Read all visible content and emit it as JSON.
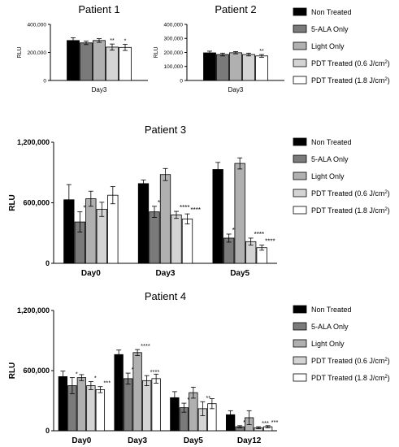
{
  "colors": {
    "Non Treated": "#000000",
    "5-ALA Only": "#7a7a7a",
    "Light Only": "#b0b0b0",
    "PDT Treated (0.6 J/cm2)": "#d4d4d4",
    "PDT Treated (1.8 J/cm2)": "#ffffff"
  },
  "legend_entries": [
    "Non Treated",
    "5-ALA Only",
    "Light Only",
    "PDT Treated (0.6 J/cm",
    "PDT Treated (1.8 J/cm"
  ],
  "legend_unit_sup": "2",
  "legend_unit_close": ")",
  "chart_data": [
    {
      "type": "bar",
      "title": "Patient 1",
      "ylabel": "RLU",
      "ylim": [
        0,
        400000
      ],
      "yticks": [
        "0",
        "200,000",
        "400,000"
      ],
      "categories": [
        "Day3"
      ],
      "series": [
        {
          "name": "Non Treated",
          "values": [
            285000
          ],
          "errors": [
            20000
          ],
          "sig": [
            ""
          ]
        },
        {
          "name": "5-ALA Only",
          "values": [
            268000
          ],
          "errors": [
            12000
          ],
          "sig": [
            ""
          ]
        },
        {
          "name": "Light Only",
          "values": [
            285000
          ],
          "errors": [
            13000
          ],
          "sig": [
            ""
          ]
        },
        {
          "name": "PDT Treated (0.6 J/cm2)",
          "values": [
            238000
          ],
          "errors": [
            22000
          ],
          "sig": [
            "**"
          ]
        },
        {
          "name": "PDT Treated (1.8 J/cm2)",
          "values": [
            236000
          ],
          "errors": [
            22000
          ],
          "sig": [
            "*"
          ]
        }
      ]
    },
    {
      "type": "bar",
      "title": "Patient 2",
      "ylabel": "RLU",
      "ylim": [
        0,
        400000
      ],
      "yticks": [
        "0",
        "100,000",
        "200,000",
        "300,000",
        "400,000"
      ],
      "categories": [
        "Day3"
      ],
      "series": [
        {
          "name": "Non Treated",
          "values": [
            197000
          ],
          "errors": [
            12000
          ],
          "sig": [
            ""
          ]
        },
        {
          "name": "5-ALA Only",
          "values": [
            185000
          ],
          "errors": [
            10000
          ],
          "sig": [
            ""
          ]
        },
        {
          "name": "Light Only",
          "values": [
            198000
          ],
          "errors": [
            8000
          ],
          "sig": [
            ""
          ]
        },
        {
          "name": "PDT Treated (0.6 J/cm2)",
          "values": [
            185000
          ],
          "errors": [
            10000
          ],
          "sig": [
            ""
          ]
        },
        {
          "name": "PDT Treated (1.8 J/cm2)",
          "values": [
            175000
          ],
          "errors": [
            10000
          ],
          "sig": [
            "**"
          ]
        }
      ]
    },
    {
      "type": "bar",
      "title": "Patient 3",
      "ylabel": "RLU",
      "ylim": [
        0,
        1200000
      ],
      "yticks": [
        "0",
        "600,000",
        "1,200,000"
      ],
      "categories": [
        "Day0",
        "Day3",
        "Day5"
      ],
      "series": [
        {
          "name": "Non Treated",
          "values": [
            630000,
            790000,
            930000
          ],
          "errors": [
            150000,
            35000,
            70000
          ],
          "sig": [
            "",
            "",
            ""
          ]
        },
        {
          "name": "5-ALA Only",
          "values": [
            410000,
            510000,
            250000
          ],
          "errors": [
            100000,
            55000,
            40000
          ],
          "sig": [
            "***",
            "****",
            "****"
          ]
        },
        {
          "name": "Light Only",
          "values": [
            640000,
            880000,
            990000
          ],
          "errors": [
            75000,
            60000,
            55000
          ],
          "sig": [
            "",
            "",
            ""
          ]
        },
        {
          "name": "PDT Treated (0.6 J/cm2)",
          "values": [
            535000,
            480000,
            215000
          ],
          "errors": [
            70000,
            35000,
            35000
          ],
          "sig": [
            "",
            "****",
            "****"
          ]
        },
        {
          "name": "PDT Treated (1.8 J/cm2)",
          "values": [
            675000,
            440000,
            155000
          ],
          "errors": [
            85000,
            50000,
            25000
          ],
          "sig": [
            "",
            "****",
            "****"
          ]
        }
      ]
    },
    {
      "type": "bar",
      "title": "Patient 4",
      "ylabel": "RLU",
      "ylim": [
        0,
        1200000
      ],
      "yticks": [
        "0",
        "600,000",
        "1,200,000"
      ],
      "categories": [
        "Day0",
        "Day3",
        "Day5",
        "Day12"
      ],
      "series": [
        {
          "name": "Non Treated",
          "values": [
            540000,
            760000,
            330000,
            160000
          ],
          "errors": [
            55000,
            45000,
            60000,
            40000
          ],
          "sig": [
            "",
            "",
            "",
            ""
          ]
        },
        {
          "name": "5-ALA Only",
          "values": [
            450000,
            520000,
            230000,
            40000
          ],
          "errors": [
            80000,
            55000,
            45000,
            10000
          ],
          "sig": [
            "*",
            "****",
            "*",
            "***"
          ]
        },
        {
          "name": "Light Only",
          "values": [
            530000,
            780000,
            380000,
            130000
          ],
          "errors": [
            30000,
            30000,
            55000,
            70000
          ],
          "sig": [
            "",
            "****",
            "",
            ""
          ]
        },
        {
          "name": "PDT Treated (0.6 J/cm2)",
          "values": [
            450000,
            500000,
            220000,
            30000
          ],
          "errors": [
            40000,
            50000,
            70000,
            10000
          ],
          "sig": [
            "*",
            "****",
            "**",
            "***"
          ]
        },
        {
          "name": "PDT Treated (1.8 J/cm2)",
          "values": [
            410000,
            520000,
            270000,
            40000
          ],
          "errors": [
            30000,
            45000,
            50000,
            10000
          ],
          "sig": [
            "***",
            "",
            "",
            "***"
          ]
        }
      ]
    }
  ]
}
